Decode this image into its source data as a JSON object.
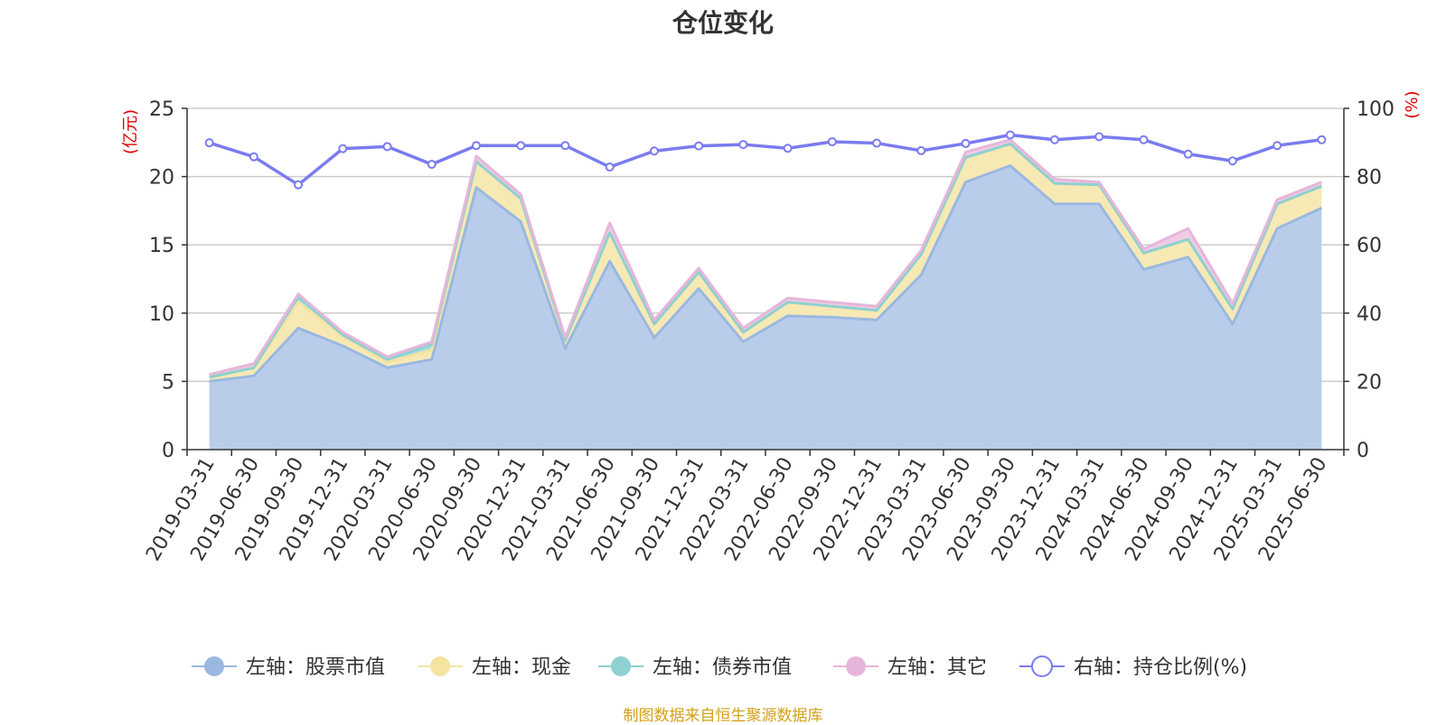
{
  "chart_data": {
    "type": "area",
    "title": "仓位变化",
    "source": "制图数据来自恒生聚源数据库",
    "left_unit": "(亿元)",
    "right_unit": "(%)",
    "ylim_left": [
      0,
      25
    ],
    "ylim_right": [
      0,
      100
    ],
    "yticks_left": [
      0,
      5,
      10,
      15,
      20,
      25
    ],
    "yticks_right": [
      0,
      20,
      40,
      60,
      80,
      100
    ],
    "grid": true,
    "legend_position": "bottom",
    "categories": [
      "2019-03-31",
      "2019-06-30",
      "2019-09-30",
      "2019-12-31",
      "2020-03-31",
      "2020-06-30",
      "2020-09-30",
      "2020-12-31",
      "2021-03-31",
      "2021-06-30",
      "2021-09-30",
      "2021-12-31",
      "2022-03-31",
      "2022-06-30",
      "2022-09-30",
      "2022-12-31",
      "2023-03-31",
      "2023-06-30",
      "2023-09-30",
      "2023-12-31",
      "2024-03-31",
      "2024-06-30",
      "2024-09-30",
      "2024-12-31",
      "2025-03-31",
      "2025-06-30"
    ],
    "series": [
      {
        "name": "左轴：股票市值",
        "axis": "left",
        "stack": true,
        "color": "#9ab8e0",
        "fill": "#b9cdeb",
        "values": [
          5.0,
          5.4,
          8.9,
          7.6,
          6.0,
          6.6,
          19.2,
          16.7,
          7.4,
          13.8,
          8.2,
          11.8,
          7.9,
          9.8,
          9.7,
          9.5,
          12.8,
          19.6,
          20.8,
          18.0,
          18.0,
          13.2,
          14.1,
          9.2,
          16.2,
          17.7
        ]
      },
      {
        "name": "左轴：现金",
        "axis": "left",
        "stack": true,
        "color": "#f5e3a1",
        "fill": "#f7e9b4",
        "values": [
          0.3,
          0.6,
          1.9,
          0.7,
          0.4,
          0.7,
          1.9,
          1.7,
          0.6,
          2.1,
          1.0,
          1.2,
          0.7,
          1.0,
          0.8,
          0.7,
          1.5,
          1.8,
          1.6,
          1.5,
          1.4,
          1.2,
          1.3,
          1.1,
          1.8,
          1.6
        ]
      },
      {
        "name": "左轴：债券市值",
        "axis": "left",
        "stack": true,
        "color": "#8fd0d0",
        "fill": "#a6dcdc",
        "values": [
          0.0,
          0.0,
          0.4,
          0.1,
          0.2,
          0.4,
          0.0,
          0.0,
          0.0,
          0.0,
          0.0,
          0.0,
          0.0,
          0.0,
          0.0,
          0.0,
          0.0,
          0.0,
          0.0,
          0.0,
          0.0,
          0.0,
          0.0,
          0.0,
          0.0,
          0.0
        ]
      },
      {
        "name": "左轴：其它",
        "axis": "left",
        "stack": true,
        "color": "#e6b6da",
        "fill": "#efcce6",
        "values": [
          0.2,
          0.3,
          0.2,
          0.2,
          0.2,
          0.2,
          0.4,
          0.3,
          0.2,
          0.7,
          0.3,
          0.3,
          0.3,
          0.3,
          0.3,
          0.3,
          0.3,
          0.4,
          0.3,
          0.3,
          0.2,
          0.3,
          0.8,
          0.4,
          0.3,
          0.3
        ]
      },
      {
        "name": "右轴：持仓比例(%)",
        "axis": "right",
        "stack": false,
        "color": "#7b7bef",
        "values": [
          89.9,
          85.8,
          77.6,
          88.2,
          88.8,
          83.6,
          89.1,
          89.1,
          89.1,
          82.8,
          87.5,
          89.0,
          89.4,
          88.3,
          90.2,
          89.8,
          87.6,
          89.7,
          92.2,
          90.8,
          91.7,
          90.8,
          86.6,
          84.6,
          89.1,
          90.8
        ]
      }
    ]
  }
}
